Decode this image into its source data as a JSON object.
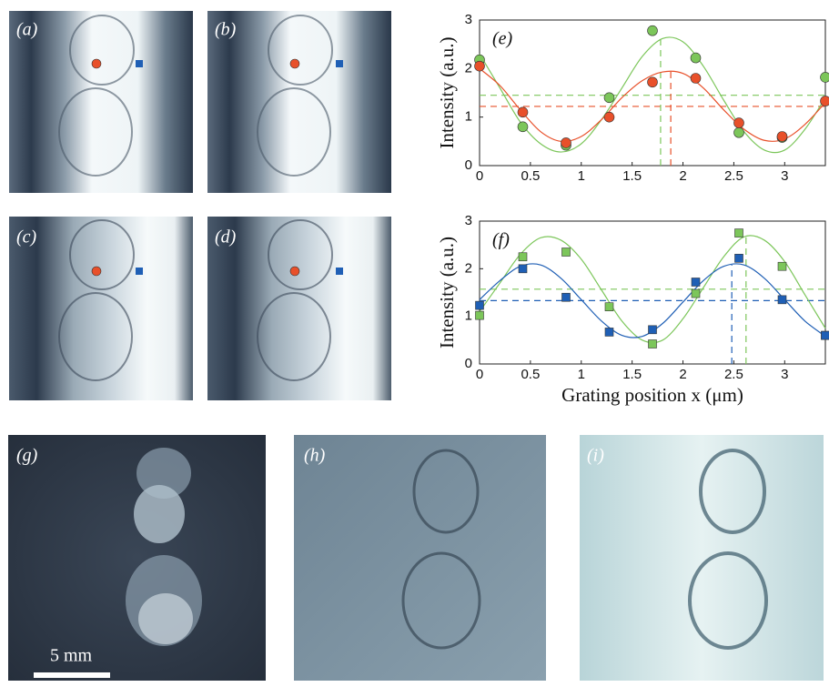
{
  "panels": {
    "a": "(a)",
    "b": "(b)",
    "c": "(c)",
    "d": "(d)",
    "g": "(g)",
    "h": "(h)",
    "i": "(i)"
  },
  "scale_bar": "5 mm",
  "chart_data": [
    {
      "type": "scatter",
      "label": "(e)",
      "ylabel": "Intensity (a.u.)",
      "xlim": [
        0,
        3.4
      ],
      "ylim": [
        0,
        3
      ],
      "xticks": [
        0,
        0.5,
        1,
        1.5,
        2,
        2.5,
        3
      ],
      "yticks": [
        0,
        1,
        2,
        3
      ],
      "series": [
        {
          "color": "#7cc65a",
          "marker": "circle",
          "x": [
            0,
            0.425,
            0.85,
            1.275,
            1.7,
            2.125,
            2.55,
            2.975,
            3.4
          ],
          "values": [
            2.18,
            0.8,
            0.42,
            1.4,
            2.78,
            2.22,
            0.68,
            0.58,
            1.82
          ]
        },
        {
          "color": "#e8502a",
          "marker": "circle",
          "x": [
            0,
            0.425,
            0.85,
            1.275,
            1.7,
            2.125,
            2.55,
            2.975,
            3.4
          ],
          "values": [
            2.05,
            1.1,
            0.47,
            1.0,
            1.72,
            1.8,
            0.88,
            0.6,
            1.33
          ]
        },
        {
          "color": "#7cc65a",
          "marker": "line",
          "x": [
            0,
            0.2,
            0.4,
            0.6,
            0.8,
            1.0,
            1.2,
            1.4,
            1.6,
            1.8,
            2.0,
            2.2,
            2.4,
            2.6,
            2.8,
            3.0,
            3.2,
            3.4
          ],
          "values": [
            2.3,
            1.6,
            0.9,
            0.45,
            0.28,
            0.45,
            0.95,
            1.6,
            2.25,
            2.62,
            2.55,
            2.05,
            1.35,
            0.7,
            0.32,
            0.32,
            0.75,
            1.4
          ]
        },
        {
          "color": "#e8502a",
          "marker": "line",
          "x": [
            0,
            0.2,
            0.4,
            0.6,
            0.8,
            1.0,
            1.2,
            1.4,
            1.6,
            1.8,
            2.0,
            2.2,
            2.4,
            2.6,
            2.8,
            3.0,
            3.2,
            3.4
          ],
          "values": [
            2.0,
            1.65,
            1.15,
            0.7,
            0.5,
            0.6,
            0.95,
            1.4,
            1.75,
            1.93,
            1.9,
            1.6,
            1.15,
            0.75,
            0.52,
            0.55,
            0.85,
            1.3
          ]
        }
      ],
      "hlines": [
        {
          "value": 1.45,
          "color": "#7cc65a"
        },
        {
          "value": 1.22,
          "color": "#e8502a"
        }
      ],
      "vlines": [
        {
          "x": 1.78,
          "y": 2.62,
          "color": "#7cc65a"
        },
        {
          "x": 1.88,
          "y": 1.94,
          "color": "#e8502a"
        }
      ]
    },
    {
      "type": "scatter",
      "label": "(f)",
      "ylabel": "Intensity (a.u.)",
      "xlabel": "Grating position x (μm)",
      "xlim": [
        0,
        3.4
      ],
      "ylim": [
        0,
        3
      ],
      "xticks": [
        0,
        0.5,
        1,
        1.5,
        2,
        2.5,
        3
      ],
      "yticks": [
        0,
        1,
        2,
        3
      ],
      "series": [
        {
          "color": "#7cc65a",
          "marker": "square",
          "x": [
            0,
            0.425,
            0.85,
            1.275,
            1.7,
            2.125,
            2.55,
            2.975,
            3.4
          ],
          "values": [
            1.02,
            2.25,
            2.35,
            1.2,
            0.42,
            1.48,
            2.75,
            2.05,
            0.6
          ]
        },
        {
          "color": "#1f5fb5",
          "marker": "square",
          "x": [
            0,
            0.425,
            0.85,
            1.275,
            1.7,
            2.125,
            2.55,
            2.975,
            3.4
          ],
          "values": [
            1.23,
            2.0,
            1.4,
            0.67,
            0.72,
            1.72,
            2.22,
            1.35,
            0.6
          ]
        },
        {
          "color": "#7cc65a",
          "marker": "line",
          "x": [
            0,
            0.2,
            0.4,
            0.6,
            0.8,
            1.0,
            1.2,
            1.4,
            1.6,
            1.8,
            2.0,
            2.2,
            2.4,
            2.6,
            2.8,
            3.0,
            3.2,
            3.4
          ],
          "values": [
            1.1,
            1.7,
            2.3,
            2.65,
            2.6,
            2.2,
            1.55,
            0.9,
            0.5,
            0.5,
            0.95,
            1.6,
            2.25,
            2.67,
            2.6,
            2.15,
            1.45,
            0.75
          ]
        },
        {
          "color": "#1f5fb5",
          "marker": "line",
          "x": [
            0,
            0.2,
            0.4,
            0.6,
            0.8,
            1.0,
            1.2,
            1.4,
            1.6,
            1.8,
            2.0,
            2.2,
            2.4,
            2.6,
            2.8,
            3.0,
            3.2,
            3.4
          ],
          "values": [
            1.35,
            1.75,
            2.05,
            2.08,
            1.8,
            1.35,
            0.9,
            0.6,
            0.58,
            0.85,
            1.3,
            1.75,
            2.05,
            2.08,
            1.8,
            1.35,
            0.9,
            0.58
          ]
        }
      ],
      "hlines": [
        {
          "value": 1.57,
          "color": "#7cc65a"
        },
        {
          "value": 1.33,
          "color": "#1f5fb5"
        }
      ],
      "vlines": [
        {
          "x": 2.48,
          "y": 2.08,
          "color": "#1f5fb5"
        },
        {
          "x": 2.62,
          "y": 2.67,
          "color": "#7cc65a"
        }
      ]
    }
  ]
}
